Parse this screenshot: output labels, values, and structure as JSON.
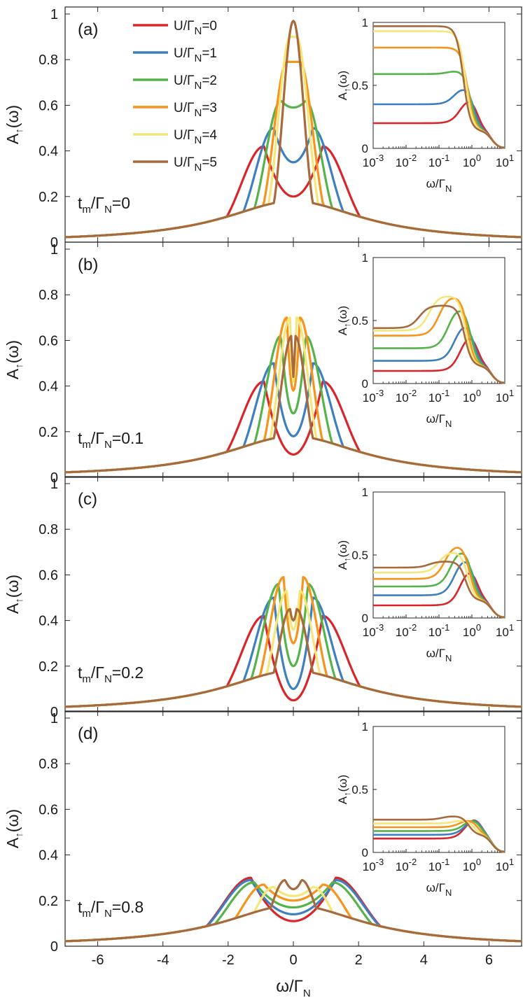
{
  "figure": {
    "x_label": "ω/Γ",
    "x_label_sub": "N",
    "y_label": "A",
    "y_label_sub": "↑",
    "y_label_suffix": "(ω)",
    "inset_x_label": "ω/Γ",
    "inset_x_label_sub": "N",
    "x_tick_labels": [
      "-6",
      "-4",
      "-2",
      "0",
      "2",
      "4",
      "6"
    ],
    "y_tick_labels": [
      "0",
      "0.2",
      "0.4",
      "0.6",
      "0.8",
      "1"
    ],
    "inset_y_tick_labels": [
      "0",
      "0.5",
      "1"
    ],
    "inset_x_tick_base": "10",
    "inset_x_tick_exponents": [
      "-3",
      "-2",
      "-1",
      "0",
      "1"
    ]
  },
  "legend": {
    "entries": [
      {
        "label": "U/Γ",
        "sub": "N",
        "suffix": "=0",
        "color": "#d9262b"
      },
      {
        "label": "U/Γ",
        "sub": "N",
        "suffix": "=1",
        "color": "#3d7fbf"
      },
      {
        "label": "U/Γ",
        "sub": "N",
        "suffix": "=2",
        "color": "#55b349"
      },
      {
        "label": "U/Γ",
        "sub": "N",
        "suffix": "=3",
        "color": "#f7941d"
      },
      {
        "label": "U/Γ",
        "sub": "N",
        "suffix": "=4",
        "color": "#f5e67a"
      },
      {
        "label": "U/Γ",
        "sub": "N",
        "suffix": "=5",
        "color": "#a66a3c"
      }
    ]
  },
  "panels": [
    {
      "label": "(a)",
      "param_prefix": "t",
      "param_sub1": "m",
      "param_mid": "/Γ",
      "param_sub2": "N",
      "param_value": "=0"
    },
    {
      "label": "(b)",
      "param_prefix": "t",
      "param_sub1": "m",
      "param_mid": "/Γ",
      "param_sub2": "N",
      "param_value": "=0.1"
    },
    {
      "label": "(c)",
      "param_prefix": "t",
      "param_sub1": "m",
      "param_mid": "/Γ",
      "param_sub2": "N",
      "param_value": "=0.2"
    },
    {
      "label": "(d)",
      "param_prefix": "t",
      "param_sub1": "m",
      "param_mid": "/Γ",
      "param_sub2": "N",
      "param_value": "=0.8"
    }
  ],
  "chart_data": [
    {
      "type": "line",
      "panel": "(a)",
      "x_range": [
        -7,
        7
      ],
      "ylim": [
        0,
        1
      ],
      "series": [
        {
          "name": "U/ΓN=0",
          "peaks": [
            {
              "x": 0.9,
              "y": 0.42
            }
          ],
          "center_y": 0.2
        },
        {
          "name": "U/ΓN=1",
          "peaks": [
            {
              "x": 0.6,
              "y": 0.5
            }
          ],
          "center_y": 0.35
        },
        {
          "name": "U/ΓN=2",
          "peaks": [
            {
              "x": 0.38,
              "y": 0.62
            }
          ],
          "center_y": 0.59
        },
        {
          "name": "U/ΓN=3",
          "peaks": [
            {
              "x": 0.2,
              "y": 0.79
            }
          ],
          "center_y": 0.79
        },
        {
          "name": "U/ΓN=4",
          "peaks": [
            {
              "x": 0.1,
              "y": 0.9
            }
          ],
          "center_y": 0.9
        },
        {
          "name": "U/ΓN=5",
          "peaks": [
            {
              "x": 0.0,
              "y": 0.97
            }
          ],
          "center_y": 0.97
        }
      ],
      "inset": {
        "x_scale": "log",
        "x_range": [
          0.001,
          10
        ],
        "ylim": [
          0,
          1
        ],
        "low_freq_values": [
          0.2,
          0.35,
          0.59,
          0.8,
          0.93,
          0.97
        ]
      }
    },
    {
      "type": "line",
      "panel": "(b)",
      "x_range": [
        -7,
        7
      ],
      "ylim": [
        0,
        1
      ],
      "series": [
        {
          "name": "U/ΓN=0",
          "peaks": [
            {
              "x": 0.9,
              "y": 0.42
            }
          ],
          "center_y": 0.1
        },
        {
          "name": "U/ΓN=1",
          "peaks": [
            {
              "x": 0.6,
              "y": 0.5
            }
          ],
          "center_y": 0.18
        },
        {
          "name": "U/ΓN=2",
          "peaks": [
            {
              "x": 0.38,
              "y": 0.62
            }
          ],
          "center_y": 0.28
        },
        {
          "name": "U/ΓN=3",
          "peaks": [
            {
              "x": 0.2,
              "y": 0.7
            }
          ],
          "center_y": 0.38
        },
        {
          "name": "U/ΓN=4",
          "peaks": [
            {
              "x": 0.1,
              "y": 0.7
            }
          ],
          "center_y": 0.42
        },
        {
          "name": "U/ΓN=5",
          "peaks": [
            {
              "x": 0.05,
              "y": 0.62
            }
          ],
          "center_y": 0.44
        }
      ],
      "inset": {
        "x_scale": "log",
        "x_range": [
          0.001,
          10
        ],
        "ylim": [
          0,
          1
        ],
        "low_freq_values": [
          0.1,
          0.18,
          0.28,
          0.38,
          0.42,
          0.44
        ]
      }
    },
    {
      "type": "line",
      "panel": "(c)",
      "x_range": [
        -7,
        7
      ],
      "ylim": [
        0,
        1
      ],
      "series": [
        {
          "name": "U/ΓN=0",
          "peaks": [
            {
              "x": 0.9,
              "y": 0.42
            }
          ],
          "center_y": 0.05
        },
        {
          "name": "U/ΓN=1",
          "peaks": [
            {
              "x": 0.6,
              "y": 0.5
            }
          ],
          "center_y": 0.1
        },
        {
          "name": "U/ΓN=2",
          "peaks": [
            {
              "x": 0.45,
              "y": 0.56
            }
          ],
          "center_y": 0.2
        },
        {
          "name": "U/ΓN=3",
          "peaks": [
            {
              "x": 0.3,
              "y": 0.59
            }
          ],
          "center_y": 0.3
        },
        {
          "name": "U/ΓN=4",
          "peaks": [
            {
              "x": 0.2,
              "y": 0.53
            }
          ],
          "center_y": 0.36
        },
        {
          "name": "U/ΓN=5",
          "peaks": [
            {
              "x": 0.1,
              "y": 0.45
            }
          ],
          "center_y": 0.4
        }
      ],
      "inset": {
        "x_scale": "log",
        "x_range": [
          0.001,
          10
        ],
        "ylim": [
          0,
          1
        ],
        "low_freq_values": [
          0.1,
          0.18,
          0.25,
          0.31,
          0.36,
          0.4
        ]
      }
    },
    {
      "type": "line",
      "panel": "(d)",
      "x_range": [
        -7,
        7
      ],
      "ylim": [
        0,
        1
      ],
      "series": [
        {
          "name": "U/ΓN=0",
          "peaks": [
            {
              "x": 1.3,
              "y": 0.3
            }
          ],
          "center_y": 0.11
        },
        {
          "name": "U/ΓN=1",
          "peaks": [
            {
              "x": 1.3,
              "y": 0.29
            }
          ],
          "center_y": 0.14
        },
        {
          "name": "U/ΓN=2",
          "peaks": [
            {
              "x": 1.2,
              "y": 0.28
            }
          ],
          "center_y": 0.17
        },
        {
          "name": "U/ΓN=3",
          "peaks": [
            {
              "x": 0.9,
              "y": 0.27
            }
          ],
          "center_y": 0.2
        },
        {
          "name": "U/ΓN=4",
          "peaks": [
            {
              "x": 0.6,
              "y": 0.26
            }
          ],
          "center_y": 0.22
        },
        {
          "name": "U/ΓN=5",
          "peaks": [
            {
              "x": 0.25,
              "y": 0.29
            }
          ],
          "center_y": 0.25
        }
      ],
      "inset": {
        "x_scale": "log",
        "x_range": [
          0.001,
          10
        ],
        "ylim": [
          0,
          1
        ],
        "low_freq_values": [
          0.11,
          0.14,
          0.17,
          0.2,
          0.23,
          0.26
        ]
      }
    }
  ]
}
